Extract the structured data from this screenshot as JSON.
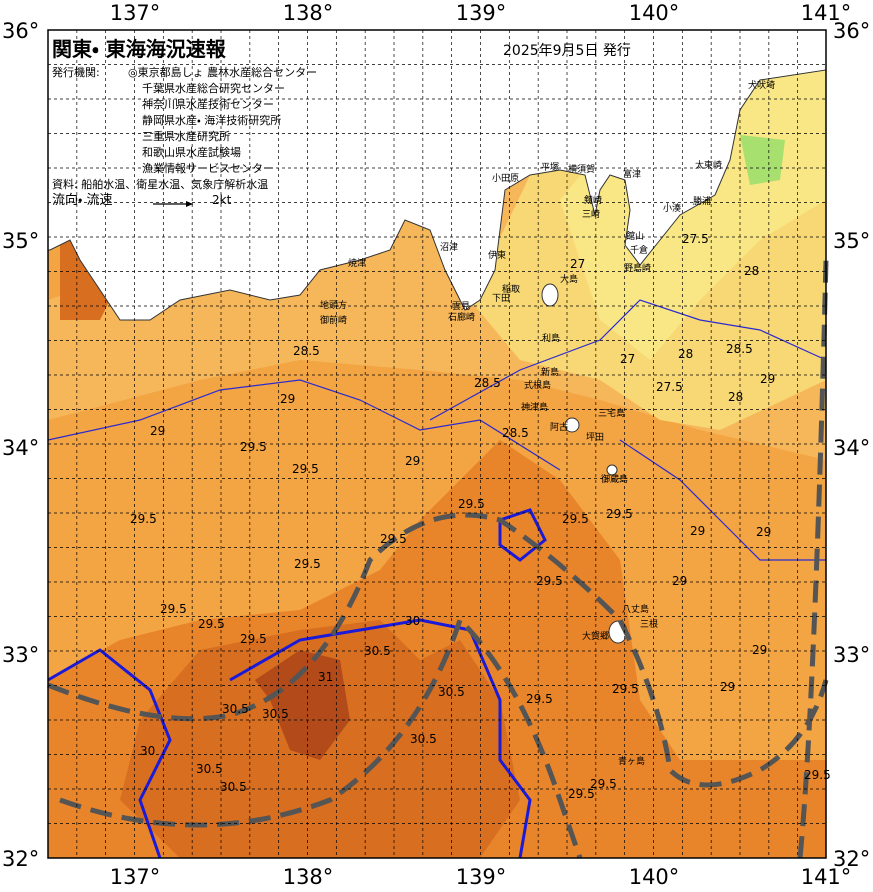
{
  "header": {
    "title": "関東・ 東海海況速報",
    "date": "2025年9月5日 発行",
    "agency_label": "発行機関:",
    "agencies": [
      "◎東京都島しょ 農林水産総合センター",
      "千葉県水産総合研究センター",
      "神奈川県水産技術センター",
      "静岡県水産・ 海洋技術研究所",
      "三重県水産研究所",
      "和歌山県水産試験場",
      "漁業情報サービスセンター"
    ],
    "source": "資料: 船舶水温、衛星水温、気象庁解析水温",
    "flow_label": "流向・ 流速",
    "flow_scale": "2kt"
  },
  "axes": {
    "lon_top": [
      "137°",
      "138°",
      "139°",
      "140°",
      "141°"
    ],
    "lon_bottom": [
      "137°",
      "138°",
      "139°",
      "140°",
      "141°"
    ],
    "lat_left": [
      "36°",
      "35°",
      "34°",
      "33°",
      "32°"
    ],
    "lat_right": [
      "36°",
      "35°",
      "34°",
      "33°",
      "32°"
    ]
  },
  "places": [
    "犬吠埼",
    "太東崎",
    "勝浦",
    "小湊",
    "富津",
    "横須賀",
    "三崎",
    "剱崎",
    "平塚",
    "小田原",
    "館山",
    "千倉",
    "野島崎",
    "大島",
    "伊東",
    "沼津",
    "焼津",
    "稲取",
    "下田",
    "雲見",
    "石廊崎",
    "御前崎",
    "地頭方",
    "利島",
    "新島",
    "式根島",
    "神津島",
    "三宅島",
    "阿古",
    "坪田",
    "御蔵島",
    "八丈島",
    "大賀郷",
    "三根",
    "青ヶ島"
  ],
  "contour_labels": [
    "28.5",
    "29",
    "29",
    "29.5",
    "29.5",
    "29",
    "29.5",
    "29.5",
    "29.5",
    "29.5",
    "29.5",
    "29.5",
    "30",
    "30.5",
    "31",
    "30.5",
    "30.5",
    "30.5",
    "30.5",
    "30.5",
    "30.5",
    "30",
    "29.5",
    "29.5",
    "29.5",
    "29.5",
    "29.5",
    "29",
    "29",
    "29",
    "29",
    "29",
    "28.5",
    "28.5",
    "27.5",
    "27.5",
    "28",
    "28",
    "27",
    "27",
    "28.5",
    "29",
    "28",
    "29.5",
    "29.5",
    "29.5",
    "29.5"
  ]
}
